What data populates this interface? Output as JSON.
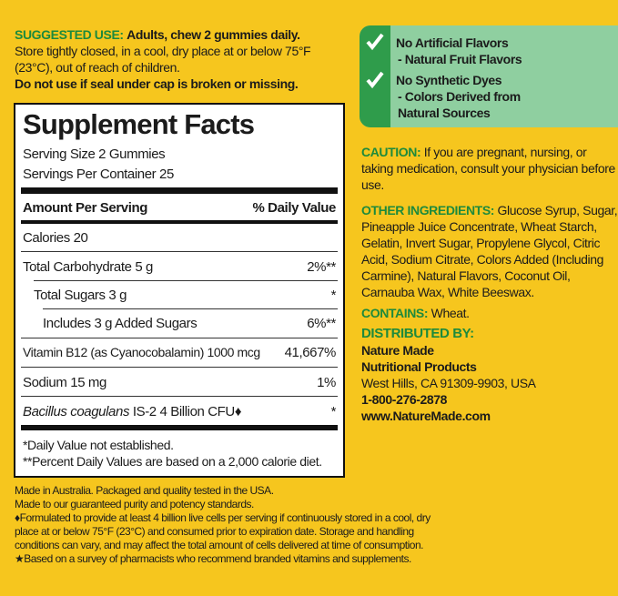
{
  "suggested_use": {
    "label": "SUGGESTED USE:",
    "text": "Adults, chew 2 gummies daily.",
    "storage": "Store tightly closed, in a cool, dry place at or below 75°F (23°C), out of reach of children.",
    "warning": "Do not use if seal under cap is broken or missing."
  },
  "supplement_facts": {
    "title": "Supplement Facts",
    "serving_size": "Serving Size 2 Gummies",
    "servings_per_container": "Servings Per Container 25",
    "header": [
      "Amount Per Serving",
      "% Daily Value"
    ],
    "rows": [
      {
        "name": "Calories",
        "amount": "20",
        "dv": null
      },
      {
        "name": "Total Carbohydrate",
        "amount": "5 g",
        "dv": "2%**"
      },
      {
        "name": "Total Sugars",
        "amount": "3 g",
        "dv": "*"
      },
      {
        "name": "Includes",
        "amount": "3 g Added Sugars",
        "dv": "6%**"
      },
      {
        "name": "Vitamin B12 (as Cyanocobalamin)",
        "amount": "1000 mcg",
        "dv": "41,667%"
      },
      {
        "name": "Sodium",
        "amount": "15 mg",
        "dv": "1%"
      },
      {
        "name": "Bacillus coagulans",
        "strain": "IS-2",
        "amount": "4 Billion CFU♦",
        "dv": "*"
      }
    ],
    "footnotes": [
      "*Daily Value not established.",
      "**Percent Daily Values are based on a 2,000 calorie diet."
    ]
  },
  "claims": [
    {
      "title": "No Artificial Flavors",
      "detail": "- Natural Fruit Flavors"
    },
    {
      "title": "No Synthetic Dyes",
      "detail": "- Colors Derived from Natural Sources"
    }
  ],
  "caution": {
    "label": "CAUTION:",
    "text": "If you are pregnant, nursing, or taking medication, consult your physician before use."
  },
  "other_ingredients": {
    "label": "OTHER INGREDIENTS:",
    "text": "Glucose Syrup, Sugar, Pineapple Juice Concentrate, Wheat Starch, Gelatin, Invert Sugar, Propylene Glycol, Citric Acid, Sodium Citrate, Colors Added (Including Carmine), Natural Flavors, Coconut Oil, Carnauba Wax, White Beeswax."
  },
  "contains": {
    "label": "CONTAINS:",
    "text": "Wheat."
  },
  "distributed_by": {
    "label": "DISTRIBUTED BY:",
    "lines": [
      "Nature Made",
      "Nutritional Products",
      "West Hills, CA 91309-9903, USA",
      "1-800-276-2878",
      "www.NatureMade.com"
    ]
  },
  "footer": [
    "Made in Australia. Packaged and quality tested in the USA.",
    "Made to our guaranteed purity and potency standards.",
    "♦Formulated to provide at least 4 billion live cells per serving if continuously stored in a cool, dry place at or below 75°F (23°C) and consumed prior to expiration date. Storage and handling conditions can vary, and may affect the total amount of cells delivered at time of consumption.",
    "★Based on a survey of pharmacists who recommend branded vitamins and supplements."
  ]
}
